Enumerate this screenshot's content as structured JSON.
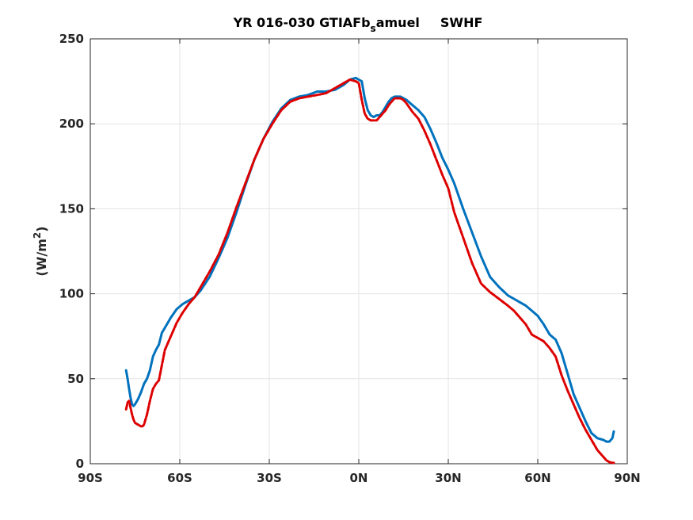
{
  "chart_data": {
    "type": "line",
    "title_parts": [
      "YR 016-030 GTIAFb",
      "s",
      "amuel",
      "SWHF"
    ],
    "xlabel": "",
    "ylabel_parts": [
      "(W/m",
      "2",
      ")"
    ],
    "xlim": [
      -90,
      90
    ],
    "ylim": [
      0,
      250
    ],
    "xticks": [
      -90,
      -60,
      -30,
      0,
      30,
      60,
      90
    ],
    "xtick_labels": [
      "90S",
      "60S",
      "30S",
      "0N",
      "30N",
      "60N",
      "90N"
    ],
    "yticks": [
      0,
      50,
      100,
      150,
      200,
      250
    ],
    "ytick_labels": [
      "0",
      "50",
      "100",
      "150",
      "200",
      "250"
    ],
    "grid": true,
    "legend": "none",
    "series": [
      {
        "color": "#0072BD",
        "style": "solid",
        "x": [
          -78,
          -77.5,
          -77,
          -76.5,
          -76,
          -75.5,
          -75,
          -74,
          -73,
          -72,
          -71,
          -70,
          -69,
          -68,
          -67,
          -66,
          -65,
          -63,
          -61,
          -59,
          -57,
          -55,
          -53,
          -50,
          -47,
          -44,
          -41,
          -38,
          -35,
          -32,
          -29,
          -26,
          -23,
          -20,
          -17,
          -14,
          -11,
          -8,
          -5,
          -3,
          -1,
          0,
          1,
          2,
          3,
          4,
          5,
          6,
          7,
          8,
          9,
          10,
          11,
          12,
          13,
          14,
          15,
          16,
          18,
          20,
          22,
          24,
          26,
          28,
          30,
          32,
          35,
          38,
          41,
          44,
          47,
          50,
          52,
          54,
          56,
          58,
          60,
          62,
          64,
          66,
          68,
          70,
          72,
          74,
          76,
          78,
          80,
          82,
          83,
          84,
          85,
          85.5
        ],
        "y": [
          55,
          50,
          44,
          39,
          35,
          34,
          35,
          38,
          42,
          47,
          50,
          55,
          63,
          67,
          70,
          77,
          80,
          86,
          91,
          94,
          96,
          98,
          102,
          110,
          121,
          133,
          148,
          164,
          179,
          191,
          201,
          209,
          214,
          216,
          217,
          219,
          219,
          220,
          223,
          226,
          227,
          226,
          225,
          215,
          208,
          205,
          204,
          205,
          205,
          207,
          210,
          213,
          215,
          216,
          216,
          216,
          215,
          214,
          211,
          208,
          204,
          197,
          189,
          180,
          173,
          165,
          150,
          136,
          122,
          110,
          104,
          99,
          97,
          95,
          93,
          90,
          87,
          82,
          76,
          73,
          65,
          53,
          41,
          33,
          25,
          18,
          15,
          14,
          13,
          13,
          15,
          19
        ]
      },
      {
        "color": "#DD0000",
        "style": "dashed",
        "x": [
          -78,
          -77.5,
          -77,
          -76.5,
          -76,
          -75.5,
          -75,
          -74,
          -73,
          -72.5,
          -72,
          -71,
          -70,
          -69,
          -68,
          -67,
          -66,
          -65,
          -63,
          -61,
          -59,
          -57,
          -55,
          -53,
          -50,
          -47,
          -44,
          -41,
          -38,
          -35,
          -32,
          -29,
          -26,
          -23,
          -20,
          -17,
          -14,
          -11,
          -8,
          -5,
          -3,
          -1,
          0,
          1,
          2,
          3,
          4,
          5,
          6,
          7,
          8,
          9,
          10,
          11,
          12,
          13,
          14,
          15,
          16,
          18,
          20,
          22,
          24,
          26,
          28,
          30,
          32,
          35,
          38,
          41,
          44,
          47,
          50,
          52,
          54,
          56,
          58,
          60,
          62,
          64,
          66,
          68,
          70,
          72,
          74,
          76,
          78,
          80,
          82,
          83,
          84,
          85,
          85.5
        ],
        "y": [
          32,
          36,
          37,
          33,
          29,
          26,
          24,
          23,
          22,
          22,
          23,
          29,
          37,
          44,
          47,
          49,
          58,
          67,
          75,
          83,
          89,
          94,
          98,
          104,
          113,
          123,
          136,
          151,
          165,
          179,
          191,
          200,
          208,
          213,
          215,
          216,
          217,
          218,
          221,
          224,
          226,
          225,
          224,
          214,
          206,
          203,
          202,
          202,
          202,
          204,
          206,
          208,
          211,
          213,
          215,
          215,
          215,
          214,
          212,
          207,
          203,
          196,
          188,
          179,
          170,
          162,
          148,
          133,
          118,
          106,
          101,
          97,
          93,
          90,
          86,
          82,
          76,
          74,
          72,
          68,
          63,
          52,
          43,
          35,
          27,
          20,
          14,
          8,
          4,
          2,
          1,
          0.5,
          0.5
        ]
      }
    ]
  }
}
